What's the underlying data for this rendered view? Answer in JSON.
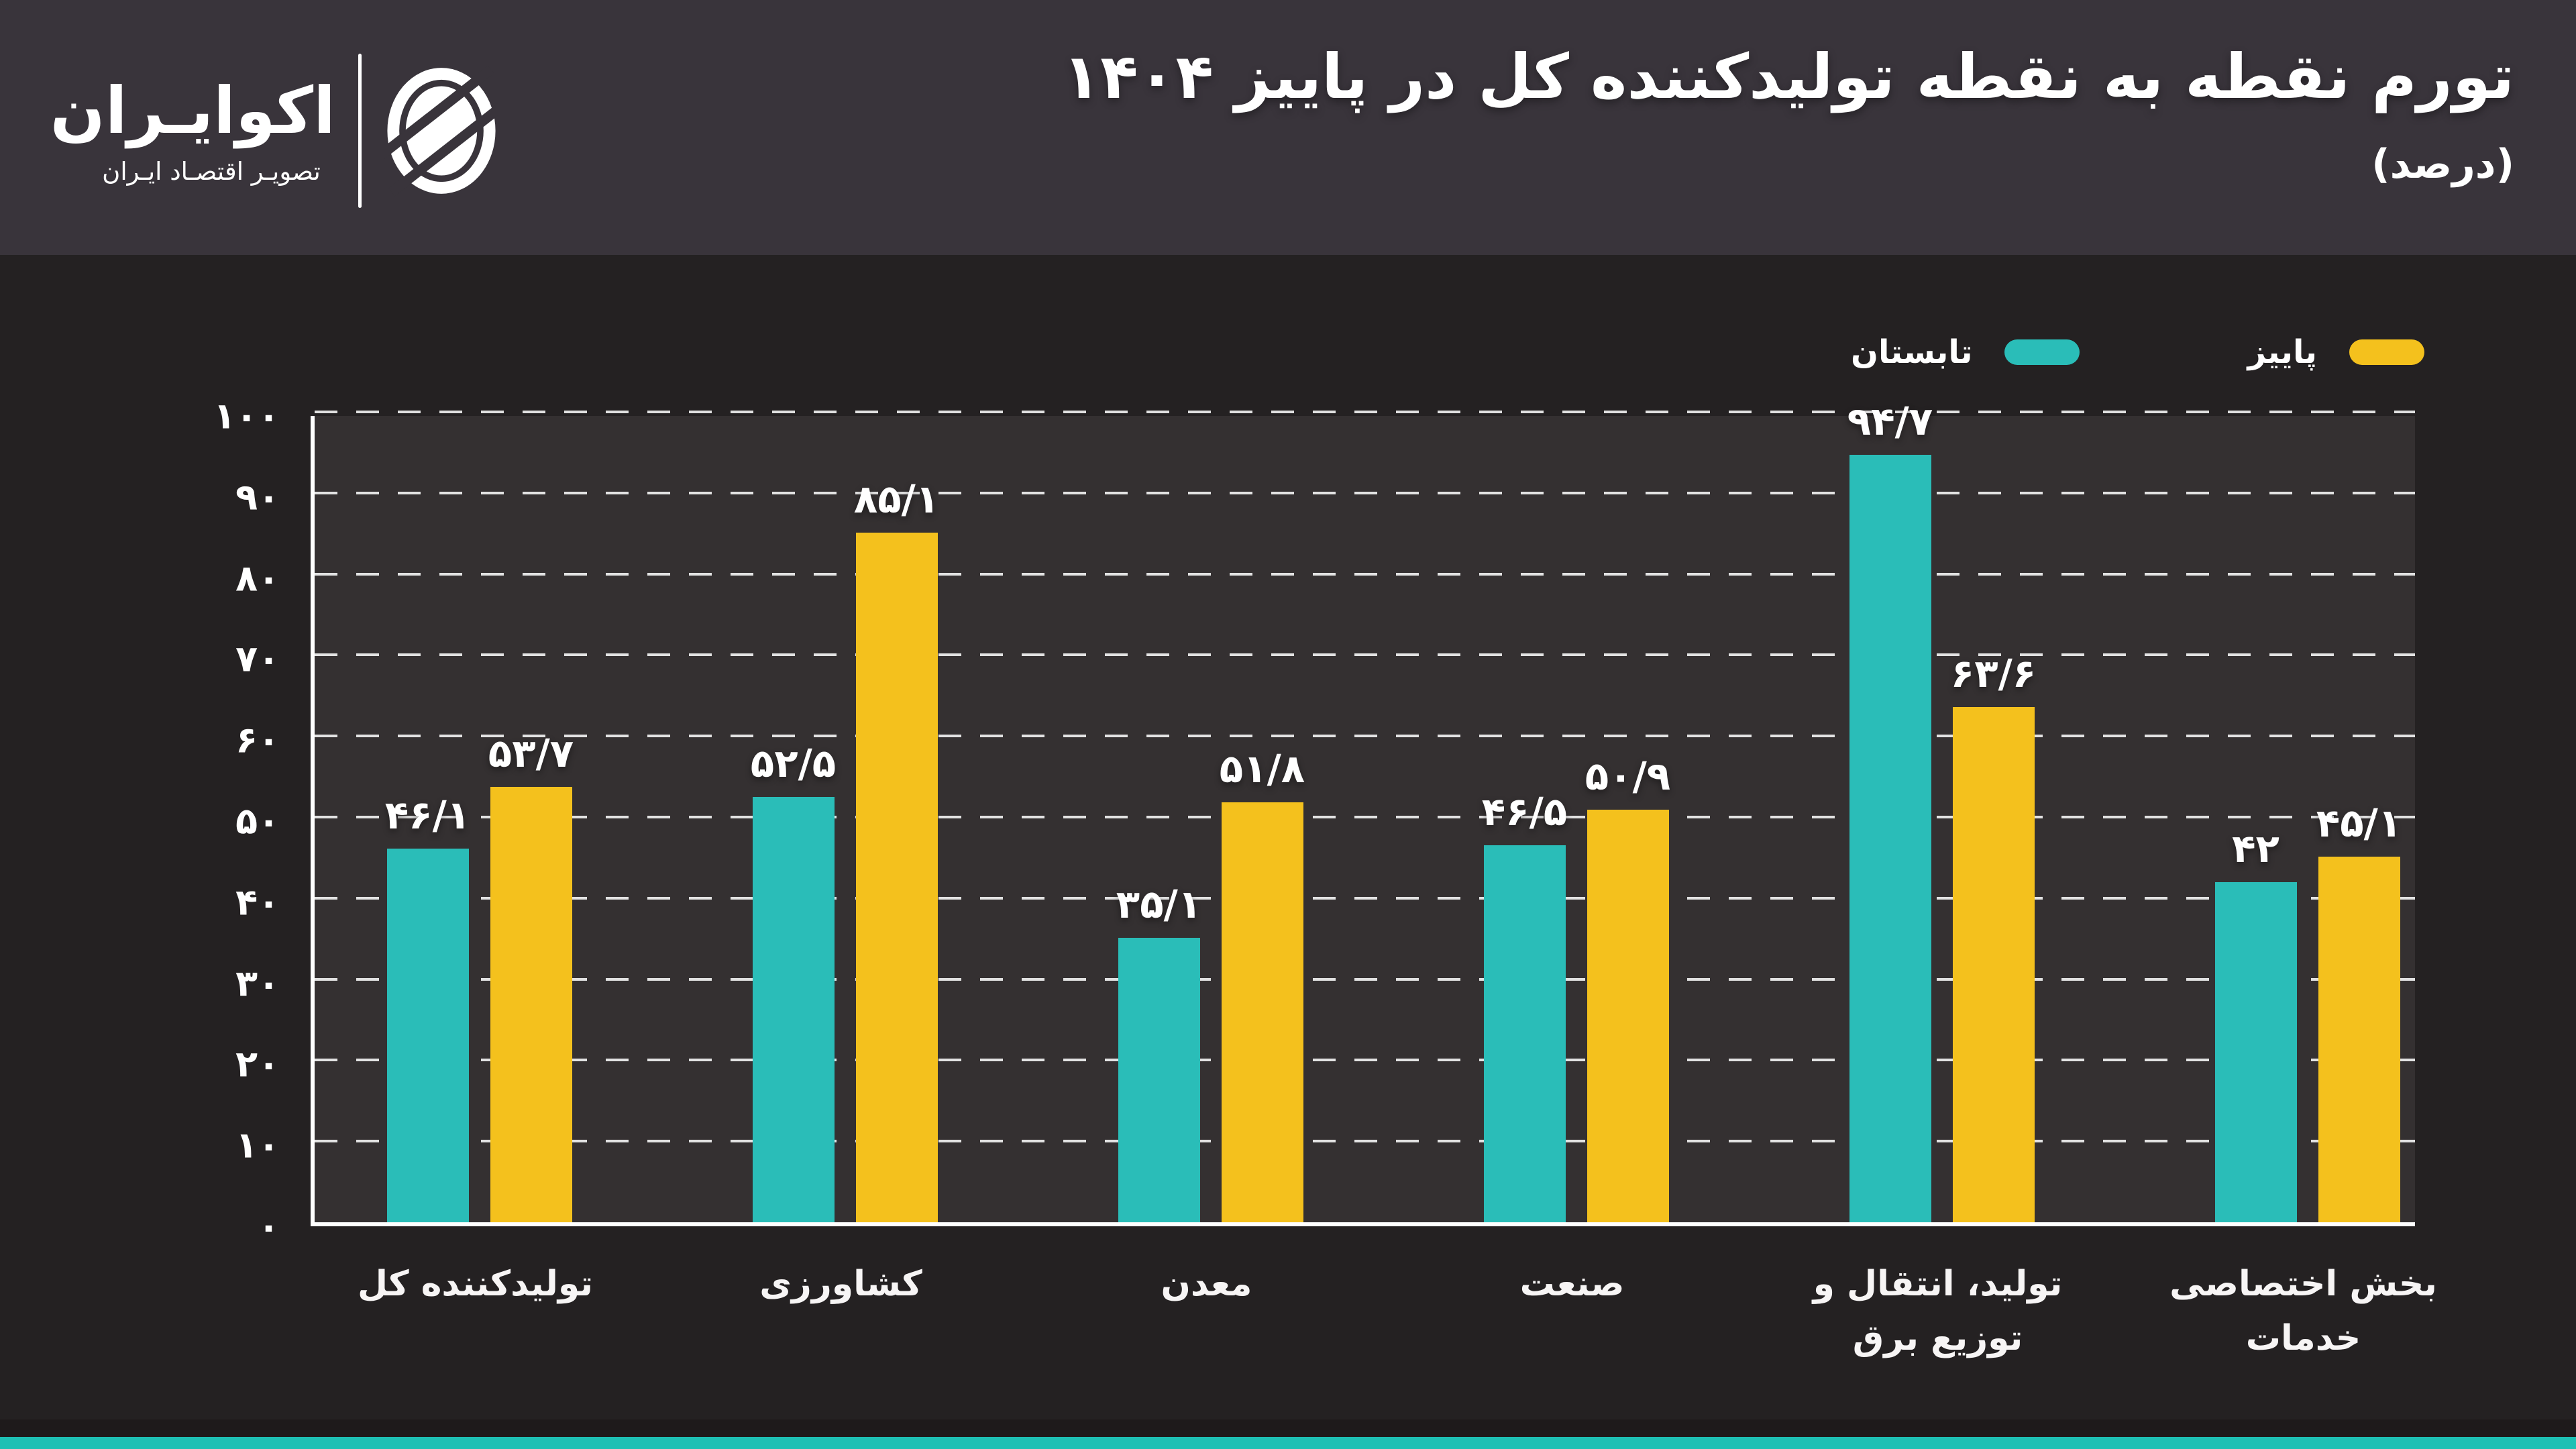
{
  "header": {
    "brand_title": "اکوایـران",
    "brand_subtitle": "تصویـر اقتصـاد ایـران",
    "title": "تورم نقطه به نقطه تولیدکننده کل در پاییز ۱۴۰۴",
    "subtitle": "(درصد)"
  },
  "legend": [
    {
      "label": "تابستان",
      "color": "#2abdb8"
    },
    {
      "label": "پاییز",
      "color": "#f4c11d"
    }
  ],
  "chart_data": {
    "type": "bar",
    "title": "تورم نقطه به نقطه تولیدکننده کل در پاییز ۱۴۰۴",
    "unit_note": "(درصد)",
    "categories": [
      "تولیدکننده کل",
      "کشاورزی",
      "معدن",
      "صنعت",
      "تولید، انتقال و توزیع برق",
      "بخش اختصاصی خدمات"
    ],
    "series": [
      {
        "name": "تابستان",
        "color": "#2abdb8",
        "values": [
          46.1,
          52.5,
          35.1,
          46.5,
          94.7,
          42
        ],
        "labels": [
          "۴۶/۱",
          "۵۲/۵",
          "۳۵/۱",
          "۴۶/۵",
          "۹۴/۷",
          "۴۲"
        ]
      },
      {
        "name": "پاییز",
        "color": "#f4c11d",
        "values": [
          53.7,
          85.1,
          51.8,
          50.9,
          63.6,
          45.1
        ],
        "labels": [
          "۵۳/۷",
          "۸۵/۱",
          "۵۱/۸",
          "۵۰/۹",
          "۶۳/۶",
          "۴۵/۱"
        ]
      }
    ],
    "ylim": [
      0,
      100
    ],
    "y_ticks": [
      {
        "v": 0,
        "label": "۰"
      },
      {
        "v": 10,
        "label": "۱۰"
      },
      {
        "v": 20,
        "label": "۲۰"
      },
      {
        "v": 30,
        "label": "۳۰"
      },
      {
        "v": 40,
        "label": "۴۰"
      },
      {
        "v": 50,
        "label": "۵۰"
      },
      {
        "v": 60,
        "label": "۶۰"
      },
      {
        "v": 70,
        "label": "۷۰"
      },
      {
        "v": 80,
        "label": "۸۰"
      },
      {
        "v": 90,
        "label": "۹۰"
      },
      {
        "v": 100,
        "label": "۱۰۰"
      }
    ],
    "grid": "dashed-horizontal",
    "legend_position": "top-right"
  },
  "colors": {
    "page_bg": "#242122",
    "header_bg": "#39343b",
    "plot_bg": "#343031",
    "axis": "#ffffff",
    "footer_stripe": "#1ec0b4",
    "summer": "#2abdb8",
    "autumn": "#f4c11d"
  }
}
